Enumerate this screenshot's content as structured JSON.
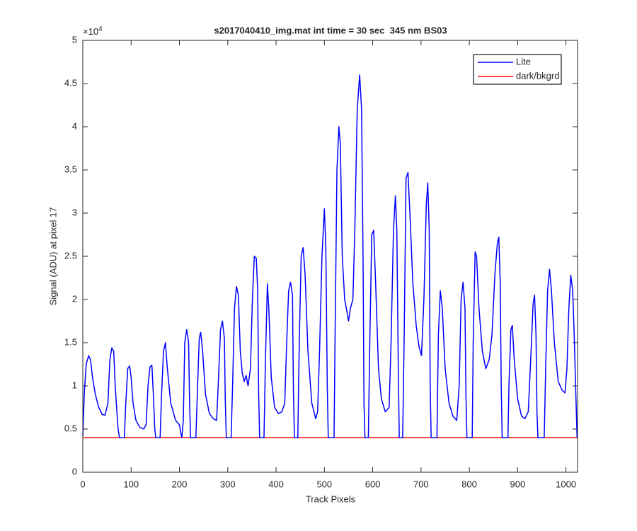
{
  "chart_data": {
    "type": "line",
    "title": "s2017040410_img.mat int time = 30 sec  345 nm BS03",
    "x_label": "Track Pixels",
    "y_label": "Signal (ADU) at pixel 17",
    "y_multiplier": {
      "base": "×10",
      "exponent": "4"
    },
    "xlim": [
      0,
      1024
    ],
    "ylim": [
      0,
      5
    ],
    "xticks": [
      0,
      100,
      200,
      300,
      400,
      500,
      600,
      700,
      800,
      900,
      1000
    ],
    "yticks": [
      0,
      0.5,
      1,
      1.5,
      2,
      2.5,
      3,
      3.5,
      4,
      4.5,
      5
    ],
    "grid": false,
    "legend_position": "upper right",
    "series": [
      {
        "name": "Lite",
        "color": "#0000ff",
        "x": [
          0,
          3,
          7,
          12,
          16,
          20,
          26,
          33,
          40,
          46,
          52,
          56,
          60,
          64,
          67,
          70,
          73,
          76,
          86,
          89,
          93,
          97,
          100,
          104,
          110,
          118,
          126,
          131,
          135,
          139,
          143,
          146,
          149,
          151,
          160,
          163,
          167,
          171,
          175,
          182,
          192,
          200,
          203,
          205,
          208,
          211,
          215,
          219,
          221,
          223,
          234,
          237,
          241,
          244,
          248,
          254,
          262,
          270,
          277,
          281,
          285,
          289,
          293,
          295,
          297,
          307,
          310,
          314,
          318,
          322,
          326,
          330,
          334,
          338,
          342,
          347,
          351,
          355,
          359,
          362,
          364,
          366,
          375,
          378,
          382,
          385,
          390,
          397,
          405,
          412,
          418,
          422,
          426,
          430,
          434,
          436,
          438,
          445,
          448,
          452,
          456,
          460,
          466,
          474,
          482,
          486,
          490,
          495,
          500,
          503,
          506,
          508,
          520,
          522,
          526,
          530,
          533,
          537,
          542,
          547,
          550,
          554,
          559,
          563,
          568,
          573,
          577,
          580,
          582,
          584,
          591,
          594,
          598,
          602,
          606,
          612,
          618,
          626,
          634,
          638,
          643,
          647,
          650,
          653,
          655,
          662,
          665,
          669,
          673,
          677,
          683,
          690,
          696,
          701,
          706,
          711,
          714,
          717,
          719,
          721,
          733,
          736,
          740,
          744,
          750,
          758,
          766,
          774,
          779,
          783,
          787,
          791,
          793,
          795,
          806,
          808,
          812,
          815,
          820,
          827,
          834,
          841,
          847,
          853,
          858,
          861,
          864,
          866,
          868,
          880,
          882,
          886,
          889,
          893,
          900,
          908,
          915,
          922,
          927,
          932,
          935,
          938,
          940,
          942,
          955,
          958,
          962,
          966,
          970,
          976,
          984,
          992,
          998,
          1002,
          1006,
          1010,
          1014,
          1017,
          1020,
          1023
        ],
        "values": [
          0.42,
          0.9,
          1.25,
          1.35,
          1.3,
          1.1,
          0.9,
          0.75,
          0.67,
          0.66,
          0.8,
          1.3,
          1.44,
          1.4,
          1.0,
          0.75,
          0.5,
          0.4,
          0.4,
          0.8,
          1.2,
          1.23,
          1.1,
          0.8,
          0.6,
          0.52,
          0.5,
          0.55,
          1.0,
          1.22,
          1.24,
          0.9,
          0.5,
          0.4,
          0.4,
          0.9,
          1.4,
          1.5,
          1.2,
          0.8,
          0.6,
          0.55,
          0.45,
          0.4,
          0.6,
          1.5,
          1.65,
          1.5,
          0.8,
          0.4,
          0.4,
          0.9,
          1.55,
          1.62,
          1.4,
          0.9,
          0.68,
          0.62,
          0.6,
          1.1,
          1.65,
          1.75,
          1.55,
          0.8,
          0.4,
          0.4,
          1.0,
          1.9,
          2.15,
          2.05,
          1.4,
          1.15,
          1.05,
          1.12,
          1.0,
          1.2,
          2.0,
          2.5,
          2.48,
          2.1,
          0.9,
          0.4,
          0.4,
          1.3,
          2.18,
          1.9,
          1.1,
          0.75,
          0.68,
          0.7,
          0.8,
          1.5,
          2.1,
          2.2,
          2.05,
          0.9,
          0.4,
          0.4,
          1.5,
          2.5,
          2.6,
          2.3,
          1.4,
          0.8,
          0.62,
          0.7,
          1.4,
          2.5,
          3.05,
          2.6,
          1.0,
          0.4,
          0.4,
          1.5,
          3.5,
          4.0,
          3.8,
          2.5,
          2.0,
          1.85,
          1.75,
          1.9,
          2.0,
          2.8,
          4.2,
          4.6,
          4.2,
          2.5,
          0.8,
          0.4,
          0.4,
          1.5,
          2.75,
          2.8,
          2.2,
          1.2,
          0.85,
          0.7,
          0.75,
          1.5,
          2.8,
          3.2,
          2.8,
          1.2,
          0.4,
          0.4,
          1.5,
          3.4,
          3.47,
          3.0,
          2.2,
          1.7,
          1.45,
          1.35,
          2.0,
          3.1,
          3.35,
          2.8,
          1.0,
          0.4,
          0.4,
          1.6,
          2.1,
          1.9,
          1.2,
          0.8,
          0.65,
          0.6,
          1.0,
          2.0,
          2.2,
          1.9,
          0.9,
          0.4,
          0.4,
          1.5,
          2.55,
          2.5,
          1.9,
          1.4,
          1.2,
          1.3,
          1.6,
          2.3,
          2.65,
          2.72,
          2.2,
          1.0,
          0.4,
          0.4,
          1.0,
          1.65,
          1.7,
          1.3,
          0.85,
          0.65,
          0.62,
          0.7,
          1.3,
          1.95,
          2.05,
          1.6,
          0.7,
          0.4,
          0.4,
          1.2,
          2.1,
          2.35,
          2.1,
          1.5,
          1.05,
          0.95,
          0.92,
          1.2,
          1.9,
          2.28,
          2.1,
          1.6,
          1.0,
          0.4
        ]
      },
      {
        "name": "dark/bkgrd",
        "color": "#ff0000",
        "x": [
          0,
          1024
        ],
        "values": [
          0.4,
          0.4
        ]
      }
    ]
  }
}
